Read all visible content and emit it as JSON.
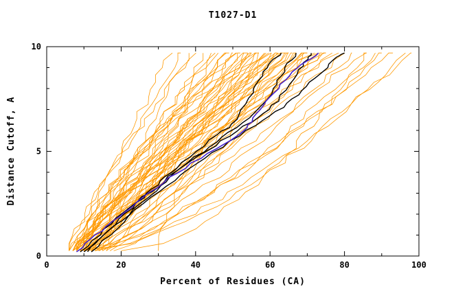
{
  "chart_data": {
    "type": "line",
    "title": "T1027-D1",
    "xlabel": "Percent of Residues (CA)",
    "ylabel": "Distance Cutoff, A",
    "xlim": [
      0,
      100
    ],
    "ylim": [
      0,
      10
    ],
    "x_major_ticks": [
      0,
      20,
      40,
      60,
      80,
      100
    ],
    "x_minor_ticks": [
      10,
      30,
      50,
      70,
      90
    ],
    "y_major_ticks": [
      0,
      5,
      10
    ],
    "y_minor_ticks": [
      1,
      2,
      3,
      4,
      6,
      7,
      8,
      9
    ],
    "legend": "none",
    "grid": false,
    "colors": {
      "orange": "#FF9900",
      "black": "#000000",
      "blue": "#4422CC"
    },
    "orange_series_format": "[start_x_at_bottom, end_x_at_top, shape_exponent]",
    "orange_series": [
      [
        6,
        33,
        1.0
      ],
      [
        7,
        36,
        1.1
      ],
      [
        8,
        38,
        0.9
      ],
      [
        6,
        40,
        1.2
      ],
      [
        9,
        42,
        1.0
      ],
      [
        7,
        44,
        0.8
      ],
      [
        10,
        45,
        1.3
      ],
      [
        8,
        46,
        1.0
      ],
      [
        11,
        47,
        0.9
      ],
      [
        6,
        48,
        1.1
      ],
      [
        9,
        49,
        1.2
      ],
      [
        12,
        50,
        0.8
      ],
      [
        7,
        50,
        1.0
      ],
      [
        10,
        51,
        1.4
      ],
      [
        8,
        52,
        0.9
      ],
      [
        13,
        53,
        1.1
      ],
      [
        9,
        54,
        1.0
      ],
      [
        6,
        54,
        1.3
      ],
      [
        11,
        55,
        0.8
      ],
      [
        8,
        55,
        1.2
      ],
      [
        14,
        56,
        1.0
      ],
      [
        8,
        56,
        1.5
      ],
      [
        10,
        57,
        0.9
      ],
      [
        7,
        57,
        1.1
      ],
      [
        12,
        58,
        1.3
      ],
      [
        9,
        58,
        0.8
      ],
      [
        6,
        59,
        1.0
      ],
      [
        11,
        60,
        1.2
      ],
      [
        8,
        60,
        0.9
      ],
      [
        15,
        61,
        1.1
      ],
      [
        10,
        61,
        1.0
      ],
      [
        7,
        62,
        1.3
      ],
      [
        13,
        62,
        0.8
      ],
      [
        9,
        63,
        1.1
      ],
      [
        12,
        64,
        1.0
      ],
      [
        8,
        64,
        1.2
      ],
      [
        16,
        65,
        0.9
      ],
      [
        10,
        65,
        1.0
      ],
      [
        7,
        66,
        1.1
      ],
      [
        14,
        67,
        1.3
      ],
      [
        9,
        67,
        0.8
      ],
      [
        11,
        68,
        1.0
      ],
      [
        8,
        69,
        1.2
      ],
      [
        17,
        70,
        0.9
      ],
      [
        10,
        70,
        1.0
      ],
      [
        12,
        71,
        1.1
      ],
      [
        9,
        72,
        1.3
      ],
      [
        15,
        73,
        0.8
      ],
      [
        8,
        74,
        1.0
      ],
      [
        11,
        75,
        1.2
      ],
      [
        30,
        75,
        1.8
      ],
      [
        13,
        76,
        0.9
      ],
      [
        10,
        78,
        1.1
      ],
      [
        16,
        80,
        1.0
      ],
      [
        20,
        86,
        0.55
      ],
      [
        9,
        82,
        0.7
      ],
      [
        12,
        85,
        0.9
      ],
      [
        18,
        88,
        0.8
      ],
      [
        11,
        90,
        0.7
      ],
      [
        14,
        93,
        0.8
      ],
      [
        10,
        96,
        0.6
      ],
      [
        13,
        98,
        0.7
      ]
    ],
    "black_series": [
      [
        [
          10,
          0.2
        ],
        [
          14,
          0.8
        ],
        [
          18,
          1.5
        ],
        [
          23,
          2.3
        ],
        [
          27,
          3.0
        ],
        [
          31,
          3.6
        ],
        [
          35,
          4.2
        ],
        [
          40,
          5.0
        ],
        [
          46,
          5.8
        ],
        [
          50,
          6.3
        ],
        [
          52,
          7.0
        ],
        [
          55,
          7.8
        ],
        [
          57,
          8.4
        ],
        [
          59,
          9.0
        ],
        [
          61,
          9.4
        ],
        [
          63,
          9.7
        ]
      ],
      [
        [
          11,
          0.2
        ],
        [
          15,
          0.9
        ],
        [
          20,
          1.7
        ],
        [
          25,
          2.5
        ],
        [
          29,
          3.1
        ],
        [
          33,
          3.8
        ],
        [
          38,
          4.5
        ],
        [
          44,
          5.2
        ],
        [
          49,
          5.9
        ],
        [
          54,
          6.6
        ],
        [
          58,
          7.2
        ],
        [
          61,
          8.0
        ],
        [
          63,
          8.6
        ],
        [
          65,
          9.2
        ],
        [
          67,
          9.7
        ]
      ],
      [
        [
          9,
          0.2
        ],
        [
          14,
          1.0
        ],
        [
          19,
          1.8
        ],
        [
          24,
          2.6
        ],
        [
          30,
          3.3
        ],
        [
          35,
          4.0
        ],
        [
          41,
          4.8
        ],
        [
          47,
          5.5
        ],
        [
          53,
          6.2
        ],
        [
          58,
          6.8
        ],
        [
          62,
          7.4
        ],
        [
          65,
          8.2
        ],
        [
          68,
          8.9
        ],
        [
          70,
          9.4
        ],
        [
          71,
          9.7
        ]
      ],
      [
        [
          12,
          0.2
        ],
        [
          17,
          1.0
        ],
        [
          22,
          1.9
        ],
        [
          28,
          2.8
        ],
        [
          34,
          3.6
        ],
        [
          40,
          4.4
        ],
        [
          47,
          5.2
        ],
        [
          54,
          6.0
        ],
        [
          60,
          6.7
        ],
        [
          65,
          7.3
        ],
        [
          69,
          7.9
        ],
        [
          72,
          8.5
        ],
        [
          75,
          9.0
        ],
        [
          78,
          9.5
        ],
        [
          80,
          9.7
        ]
      ]
    ],
    "blue_series": [
      [
        8,
        0.2
      ],
      [
        12,
        0.8
      ],
      [
        16,
        1.4
      ],
      [
        21,
        2.1
      ],
      [
        26,
        2.8
      ],
      [
        31,
        3.5
      ],
      [
        37,
        4.2
      ],
      [
        43,
        4.9
      ],
      [
        49,
        5.5
      ],
      [
        53,
        6.0
      ],
      [
        55,
        6.4
      ],
      [
        57,
        7.0
      ],
      [
        60,
        7.6
      ],
      [
        63,
        8.2
      ],
      [
        66,
        8.8
      ],
      [
        70,
        9.3
      ],
      [
        73,
        9.7
      ]
    ]
  }
}
